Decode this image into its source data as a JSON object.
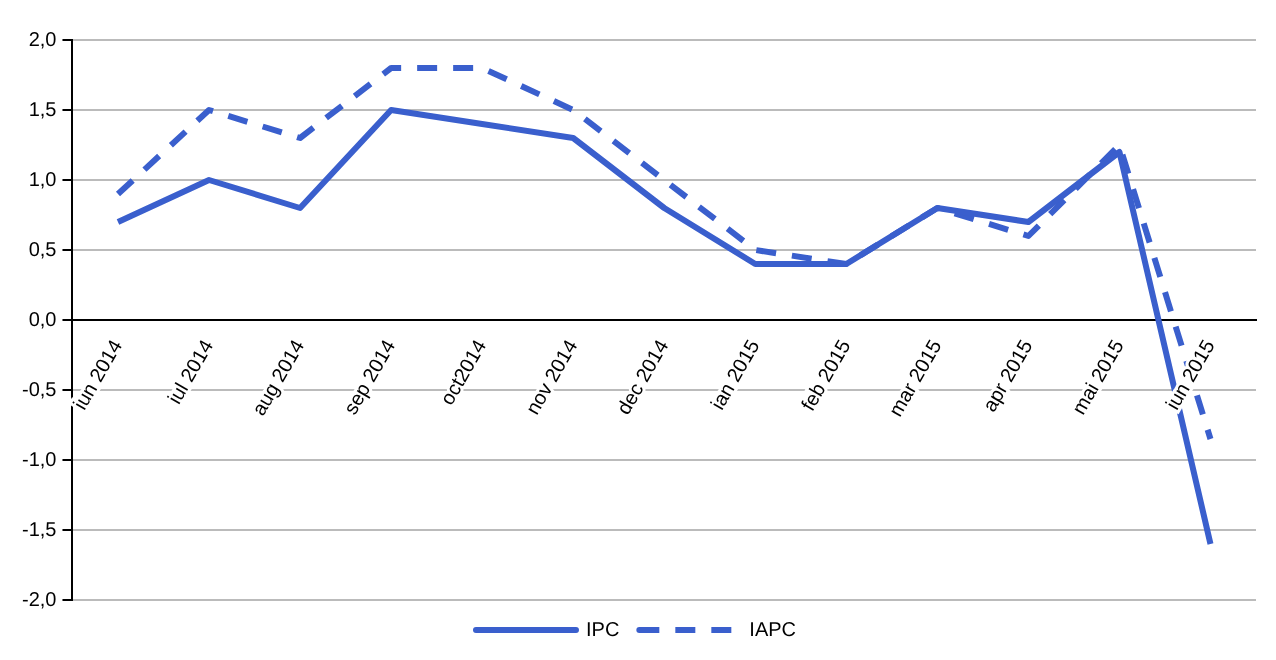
{
  "chart_data": {
    "type": "line",
    "categories": [
      "iun 2014",
      "iul 2014",
      "aug 2014",
      "sep 2014",
      "oct2014",
      "nov 2014",
      "dec 2014",
      "ian 2015",
      "feb 2015",
      "mar 2015",
      "apr 2015",
      "mai 2015",
      "iun 2015"
    ],
    "series": [
      {
        "name": "IPC",
        "color": "#3a5fcd",
        "line_style": "solid",
        "values": [
          0.7,
          1.0,
          0.8,
          1.5,
          1.4,
          1.3,
          0.8,
          0.4,
          0.4,
          0.8,
          0.7,
          1.2,
          -1.6
        ]
      },
      {
        "name": "IAPC",
        "color": "#3a5fcd",
        "line_style": "dashed",
        "values": [
          0.9,
          1.5,
          1.3,
          1.8,
          1.8,
          1.5,
          1.0,
          0.5,
          0.4,
          0.8,
          0.6,
          1.25,
          -0.85
        ]
      }
    ],
    "ylim": [
      -2,
      2
    ],
    "yticks": [
      {
        "value": -2,
        "label": "-2,0"
      },
      {
        "value": -1.5,
        "label": "-1,5"
      },
      {
        "value": -1,
        "label": "-1,0"
      },
      {
        "value": -0.5,
        "label": "-0,5"
      },
      {
        "value": 0,
        "label": "0,0"
      },
      {
        "value": 0.5,
        "label": "0,5"
      },
      {
        "value": 1,
        "label": "1,0"
      },
      {
        "value": 1.5,
        "label": "1,5"
      },
      {
        "value": 2,
        "label": "2,0"
      }
    ],
    "grid": "y",
    "legend": "bottom",
    "marker": "none"
  }
}
